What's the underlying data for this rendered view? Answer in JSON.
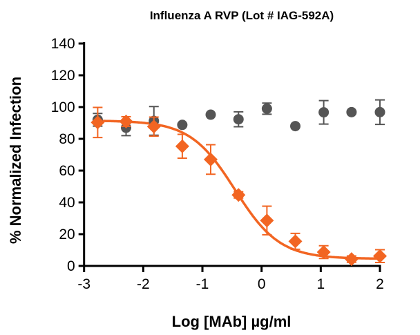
{
  "chart_data": {
    "type": "scatter",
    "title": "Influenza A RVP (Lot # IAG-592A)",
    "xlabel": "Log [MAb] µg/ml",
    "ylabel": "% Normalized Infection",
    "xlim": [
      -3,
      2
    ],
    "ylim": [
      0,
      140
    ],
    "xticks": [
      "-3",
      "-2",
      "-1",
      "0",
      "1",
      "2"
    ],
    "yticks": [
      "0",
      "20",
      "40",
      "60",
      "80",
      "100",
      "120",
      "140"
    ],
    "grid": false,
    "legend": "none",
    "x": [
      -2.77,
      -2.29,
      -1.82,
      -1.34,
      -0.86,
      -0.39,
      0.09,
      0.57,
      1.05,
      1.52,
      2.0
    ],
    "series": [
      {
        "color": "#f26522",
        "marker": "diamond",
        "fit_curve": true,
        "values": [
          90.3,
          90.9,
          87.7,
          75.3,
          67.0,
          44.7,
          28.6,
          15.5,
          8.7,
          4.3,
          6.2
        ],
        "errors": [
          9.5,
          3,
          6,
          7.5,
          9.3,
          2,
          9,
          5,
          4,
          2,
          4
        ]
      },
      {
        "color": "#555555",
        "marker": "circle",
        "fit_curve": false,
        "values": [
          92.0,
          87.0,
          91.3,
          88.8,
          95.2,
          92.3,
          99.0,
          88.0,
          96.7,
          96.8,
          96.8
        ],
        "errors": [
          4,
          5,
          9,
          0,
          0,
          4.7,
          3.5,
          0,
          7.4,
          0,
          7.7
        ]
      }
    ]
  }
}
